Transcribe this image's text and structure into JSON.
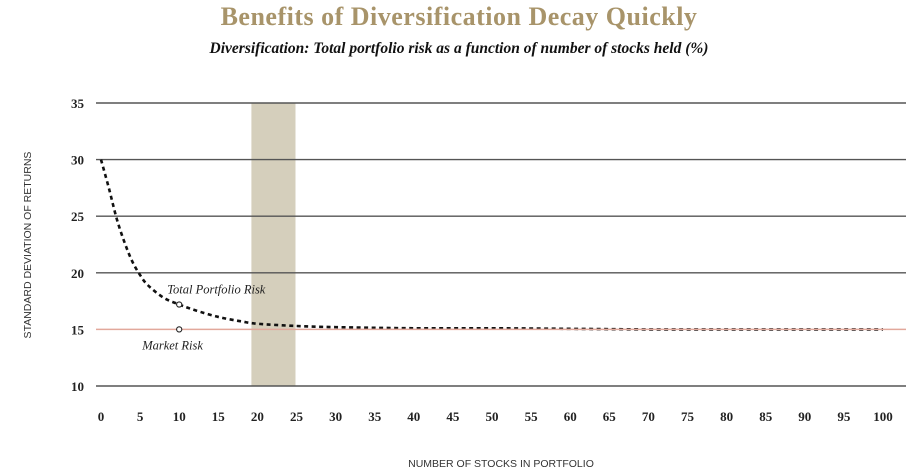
{
  "chart_data": {
    "type": "line",
    "title": "Benefits of Diversification Decay Quickly",
    "subtitle": "Diversification: Total portfolio risk as a function of number of stocks held (%)",
    "xlabel": "NUMBER OF STOCKS IN PORTFOLIO",
    "ylabel": "STANDARD DEVIATION OF RETURNS",
    "xlim": [
      0,
      101
    ],
    "ylim": [
      10,
      35
    ],
    "xticks": [
      0,
      5,
      10,
      15,
      20,
      25,
      30,
      35,
      40,
      45,
      50,
      55,
      60,
      65,
      70,
      75,
      80,
      85,
      90,
      95,
      100
    ],
    "yticks": [
      10,
      15,
      20,
      25,
      30,
      35
    ],
    "grid": "horizontal",
    "highlight_band": [
      20,
      25
    ],
    "series": [
      {
        "name": "Total Portfolio Risk",
        "style": "dotted",
        "x": [
          0,
          1,
          2,
          3,
          4,
          5,
          6,
          8,
          10,
          12,
          15,
          18,
          20,
          25,
          30,
          40,
          50,
          60,
          70,
          80,
          90,
          100
        ],
        "y": [
          30.0,
          27.5,
          24.8,
          22.7,
          21.0,
          19.8,
          18.9,
          17.8,
          17.2,
          16.7,
          16.1,
          15.7,
          15.5,
          15.3,
          15.2,
          15.1,
          15.1,
          15.05,
          15.0,
          15.0,
          15.0,
          15.0
        ]
      },
      {
        "name": "Market Risk",
        "style": "solid",
        "x": [
          0,
          101
        ],
        "y": [
          15.0,
          15.0
        ]
      }
    ],
    "annotations": [
      {
        "text": "Total Portfolio Risk",
        "x": 10,
        "y": 17.2
      },
      {
        "text": "Market Risk",
        "x": 10,
        "y": 15.0
      }
    ],
    "colors": {
      "title": "#a8946a",
      "band": "#d5cfbc",
      "grid": "#555555",
      "market_line": "#e2a89b",
      "total_line": "#111111"
    }
  }
}
